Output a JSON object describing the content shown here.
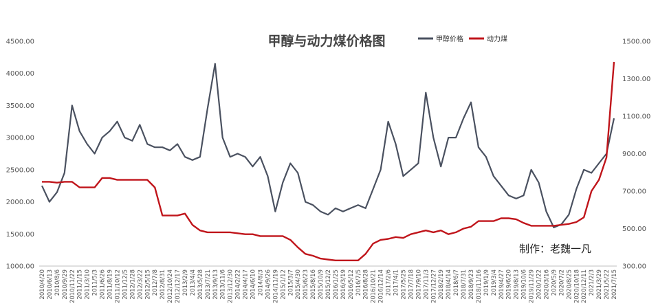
{
  "chart_data": {
    "type": "line",
    "title": "甲醇与动力煤价格图",
    "annotation": "制作：老魏一凡",
    "legend_position": "top-right",
    "grid": false,
    "y_left": {
      "ticks": [
        "1000.00",
        "1500.00",
        "2000.00",
        "2500.00",
        "3000.00",
        "3500.00",
        "4000.00",
        "4500.00"
      ],
      "range": [
        1000,
        4500
      ]
    },
    "y_right": {
      "ticks": [
        "300.00",
        "500.00",
        "700.00",
        "900.00",
        "1100.00",
        "1300.00",
        "1500.00"
      ],
      "range": [
        300,
        1500
      ]
    },
    "x_ticks": [
      "2010/4/20",
      "2010/6/13",
      "2010/8/6",
      "2010/9/29",
      "2010/11/22",
      "2011/1/15",
      "2011/3/10",
      "2011/5/3",
      "2011/6/26",
      "2011/8/19",
      "2011/10/12",
      "2011/12/5",
      "2012/1/28",
      "2012/3/22",
      "2012/5/15",
      "2012/7/8",
      "2012/8/31",
      "2012/10/24",
      "2012/12/17",
      "2013/2/9",
      "2013/4/4",
      "2013/5/28",
      "2013/7/21",
      "2013/9/13",
      "2013/11/6",
      "2013/12/30",
      "2014/2/22",
      "2014/4/17",
      "2014/6/10",
      "2014/8/3",
      "2014/9/26",
      "2014/11/19",
      "2015/1/12",
      "2015/3/7",
      "2015/4/30",
      "2015/6/23",
      "2015/8/16",
      "2015/10/9",
      "2015/12/2",
      "2016/1/25",
      "2016/3/19",
      "2016/5/12",
      "2016/7/5",
      "2016/8/28",
      "2016/10/21",
      "2016/12/14",
      "2017/2/6",
      "2017/4/1",
      "2017/5/25",
      "2017/7/18",
      "2017/9/10",
      "2017/11/3",
      "2017/12/27",
      "2018/2/19",
      "2018/4/14",
      "2018/6/7",
      "2018/7/31",
      "2018/9/23",
      "2018/11/16",
      "2019/1/9",
      "2019/3/4",
      "2019/4/27",
      "2019/6/20",
      "2019/8/13",
      "2019/10/6",
      "2019/11/29",
      "2020/1/22",
      "2020/3/16",
      "2020/5/9",
      "2020/7/2",
      "2020/8/25",
      "2020/10/18",
      "2020/12/11",
      "2021/2/3",
      "2021/3/29",
      "2021/5/22",
      "2021/7/15"
    ],
    "series": [
      {
        "name": "甲醇价格",
        "axis": "left",
        "color": "#4a5160",
        "values": [
          2250,
          2000,
          2150,
          2450,
          3500,
          3100,
          2900,
          2750,
          3000,
          3100,
          3250,
          3000,
          2950,
          3200,
          2900,
          2850,
          2850,
          2800,
          2900,
          2700,
          2650,
          2700,
          3450,
          4150,
          3000,
          2700,
          2750,
          2700,
          2550,
          2700,
          2400,
          1850,
          2300,
          2600,
          2450,
          2000,
          1950,
          1850,
          1800,
          1900,
          1850,
          1900,
          1950,
          1900,
          2200,
          2500,
          3250,
          2900,
          2400,
          2500,
          2600,
          3700,
          3000,
          2550,
          3000,
          3000,
          3300,
          3550,
          2850,
          2700,
          2400,
          2250,
          2100,
          2050,
          2100,
          2500,
          2300,
          1850,
          1600,
          1650,
          1800,
          2200,
          2500,
          2450,
          2600,
          2750,
          3300
        ]
      },
      {
        "name": "动力煤",
        "axis": "right",
        "color": "#c0151b",
        "values": [
          750,
          750,
          745,
          750,
          750,
          720,
          720,
          720,
          770,
          770,
          760,
          760,
          760,
          760,
          760,
          720,
          570,
          570,
          570,
          580,
          520,
          490,
          480,
          480,
          480,
          480,
          475,
          470,
          470,
          460,
          460,
          460,
          460,
          440,
          400,
          365,
          355,
          340,
          335,
          330,
          330,
          330,
          330,
          365,
          420,
          440,
          445,
          455,
          450,
          470,
          480,
          490,
          480,
          490,
          470,
          480,
          500,
          510,
          540,
          540,
          540,
          555,
          555,
          550,
          530,
          515,
          515,
          515,
          515,
          520,
          525,
          535,
          560,
          700,
          760,
          880,
          1390
        ]
      }
    ]
  }
}
